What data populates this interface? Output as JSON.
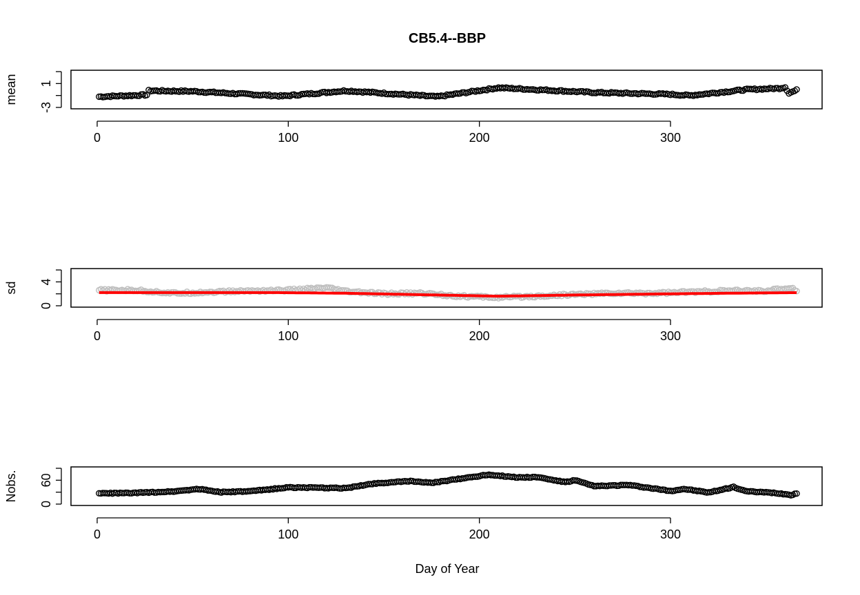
{
  "title": "CB5.4--BBP",
  "xlabel": "Day of Year",
  "colors": {
    "points": "#000000",
    "sd_points": "#bebebe",
    "sd_smooth": "#ff0000"
  },
  "chart_data": [
    {
      "type": "scatter",
      "name": "mean-panel",
      "ylabel": "mean",
      "xlim": [
        1,
        366
      ],
      "ylim": [
        -3,
        3
      ],
      "x_ticks": [
        "0",
        "100",
        "200",
        "300"
      ],
      "y_ticks": [
        "-3",
        "1"
      ],
      "point_color": "#000000",
      "x": [
        1,
        26,
        27,
        50,
        97,
        130,
        178,
        210,
        260,
        300,
        310,
        340,
        357,
        360,
        362,
        366
      ],
      "y": [
        -1.2,
        -0.9,
        -0.2,
        -0.3,
        -1.1,
        -0.2,
        -1.2,
        0.3,
        -0.5,
        -0.8,
        -1.0,
        0.0,
        0.2,
        0.4,
        -0.6,
        -0.1
      ]
    },
    {
      "type": "scatter",
      "name": "sd-panel",
      "ylabel": "sd",
      "xlim": [
        1,
        366
      ],
      "ylim": [
        0,
        6
      ],
      "x_ticks": [
        "0",
        "100",
        "200",
        "300"
      ],
      "y_ticks": [
        "0",
        "4"
      ],
      "point_color": "#bebebe",
      "line_color": "#ff0000",
      "x": [
        1,
        20,
        40,
        60,
        80,
        100,
        120,
        130,
        150,
        170,
        190,
        210,
        230,
        250,
        270,
        290,
        310,
        330,
        350,
        363,
        366
      ],
      "y": [
        2.6,
        2.6,
        2.1,
        2.3,
        2.5,
        2.6,
        3.0,
        2.4,
        2.0,
        2.1,
        1.6,
        1.4,
        1.6,
        1.9,
        2.1,
        2.1,
        2.3,
        2.5,
        2.5,
        3.0,
        2.6
      ],
      "smooth_x": [
        1,
        95,
        130,
        210,
        250,
        300,
        330,
        366
      ],
      "smooth_y": [
        2.2,
        2.2,
        2.1,
        1.6,
        1.8,
        2.0,
        2.1,
        2.2
      ]
    },
    {
      "type": "scatter",
      "name": "nobs-panel",
      "ylabel": "Nobs.",
      "xlim": [
        1,
        366
      ],
      "ylim": [
        0,
        90
      ],
      "x_ticks": [
        "0",
        "100",
        "200",
        "300"
      ],
      "y_ticks": [
        "0",
        "60"
      ],
      "point_color": "#000000",
      "x": [
        1,
        20,
        40,
        53,
        65,
        80,
        100,
        130,
        145,
        165,
        175,
        190,
        205,
        220,
        230,
        245,
        250,
        260,
        278,
        300,
        307,
        320,
        333,
        340,
        355,
        363,
        366
      ],
      "y": [
        27,
        28,
        32,
        38,
        30,
        32,
        42,
        40,
        52,
        58,
        53,
        64,
        74,
        67,
        68,
        55,
        60,
        45,
        48,
        33,
        38,
        29,
        43,
        32,
        28,
        23,
        27
      ]
    }
  ]
}
